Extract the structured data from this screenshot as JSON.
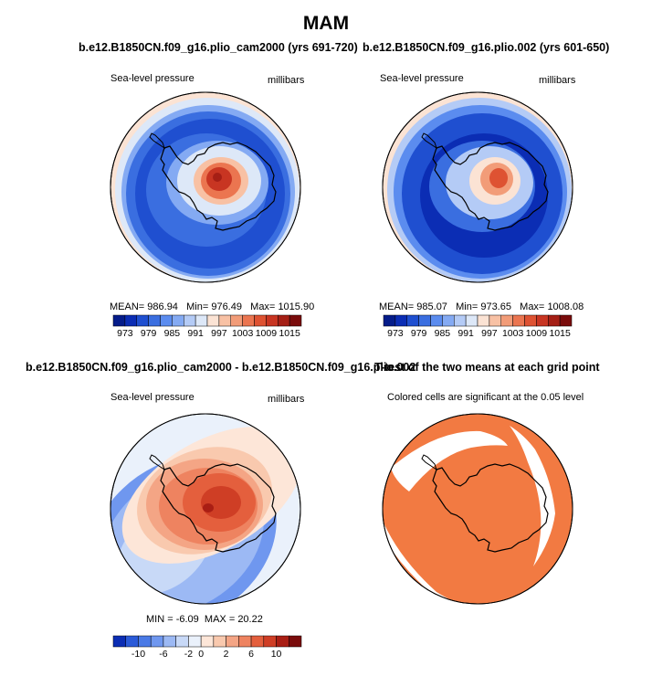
{
  "figure": {
    "title": "MAM",
    "colors": {
      "slp_scale": [
        "#051c8a",
        "#0b2db4",
        "#1f4fd0",
        "#3a6ee0",
        "#5b8cef",
        "#84aaf3",
        "#b4cbf6",
        "#dde8f8",
        "#fbe3d4",
        "#f8c1a4",
        "#f29c78",
        "#eb7550",
        "#de5232",
        "#c83522",
        "#a51f15",
        "#7a0c0c"
      ],
      "diff_scale": [
        "#0b2db4",
        "#2a5ad8",
        "#4a7ae6",
        "#6f97ef",
        "#9cb9f4",
        "#c8d9f7",
        "#eaf1fb",
        "#fde6d8",
        "#f9c9ae",
        "#f4a585",
        "#ee8360",
        "#e45f3d",
        "#cf3e25",
        "#a91e14",
        "#7a0c0c"
      ],
      "sig_color": "#f27a42",
      "coast_color": "#000000"
    }
  },
  "chart_data": [
    {
      "type": "heatmap",
      "title": "b.e12.B1850CN.f09_g16.plio_cam2000 (yrs 691-720)",
      "left_label": "Sea-level pressure",
      "right_label": "millibars",
      "stats": {
        "mean_label": "MEAN=",
        "mean": "986.94",
        "min_label": "Min=",
        "min": "976.49",
        "max_label": "Max=",
        "max": "1015.90"
      },
      "colorbar_levels": [
        973,
        976,
        979,
        982,
        985,
        988,
        991,
        994,
        997,
        1000,
        1003,
        1006,
        1009,
        1012,
        1015
      ],
      "colorbar_tick_labels": [
        "973",
        "979",
        "985",
        "991",
        "997",
        "1003",
        "1009",
        "1015"
      ]
    },
    {
      "type": "heatmap",
      "title": "b.e12.B1850CN.f09_g16.plio.002 (yrs 601-650)",
      "left_label": "Sea-level pressure",
      "right_label": "millibars",
      "stats": {
        "mean_label": "MEAN=",
        "mean": "985.07",
        "min_label": "Min=",
        "min": "973.65",
        "max_label": "Max=",
        "max": "1008.08"
      },
      "colorbar_levels": [
        973,
        976,
        979,
        982,
        985,
        988,
        991,
        994,
        997,
        1000,
        1003,
        1006,
        1009,
        1012,
        1015
      ],
      "colorbar_tick_labels": [
        "973",
        "979",
        "985",
        "991",
        "997",
        "1003",
        "1009",
        "1015"
      ]
    },
    {
      "type": "heatmap",
      "title": "b.e12.B1850CN.f09_g16.plio_cam2000 - b.e12.B1850CN.f09_g16.plio.002",
      "left_label": "Sea-level pressure",
      "right_label": "millibars",
      "stats": {
        "min_label": "MIN =",
        "min": "-6.09",
        "max_label": "MAX =",
        "max": "20.22"
      },
      "colorbar_levels": [
        -12,
        -10,
        -8,
        -6,
        -4,
        -2,
        0,
        1,
        2,
        4,
        6,
        8,
        10,
        12
      ],
      "colorbar_tick_labels": [
        "-10",
        "-6",
        "-2",
        "0",
        "2",
        "6",
        "10"
      ]
    },
    {
      "type": "heatmap",
      "title": "T-test of the two means at each grid point",
      "subtitle": "Colored cells are significant at the 0.05 level"
    }
  ]
}
